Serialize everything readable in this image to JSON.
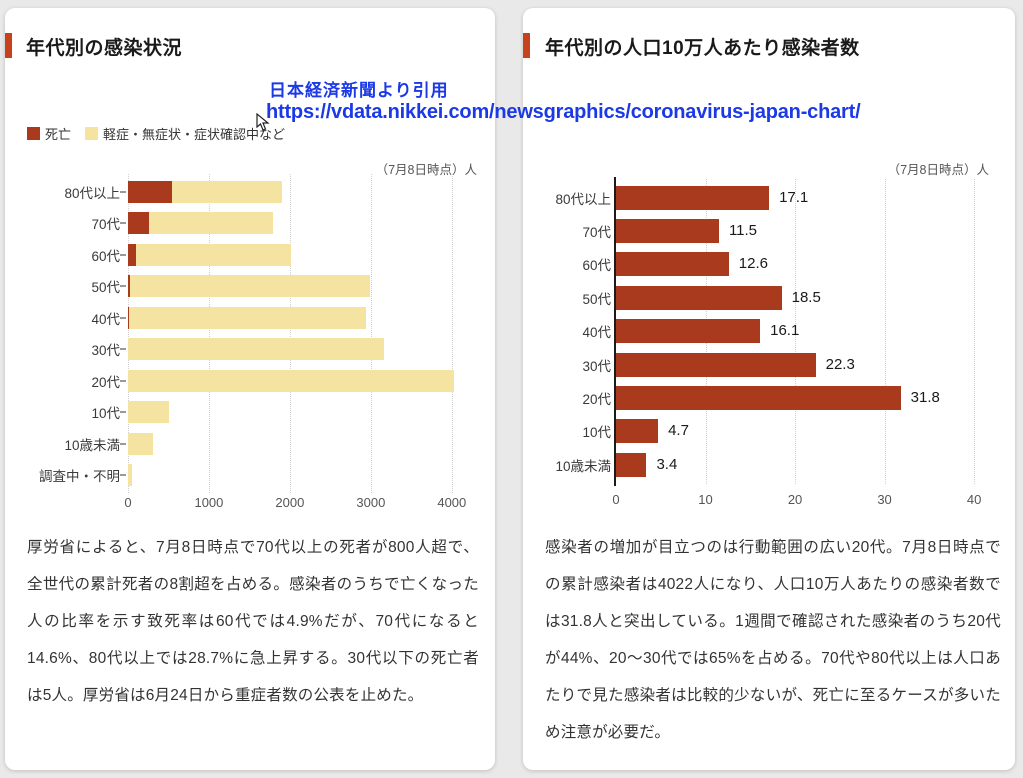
{
  "page": {
    "background": "#e9e9e9",
    "accent_color": "#c7421c"
  },
  "overlay": {
    "credit": "日本経済新聞より引用",
    "url": "https://vdata.nikkei.com/newsgraphics/coronavirus-japan-chart/",
    "color": "#1c39e6",
    "cursor_icon": "mouse-cursor-arrow"
  },
  "left_panel": {
    "title": "年代別の感染状況",
    "accent_color": "#c7421c",
    "legend": [
      {
        "label": "死亡",
        "color": "#a93a1e"
      },
      {
        "label": "軽症・無症状・症状確認中など",
        "color": "#f4e3a1"
      }
    ],
    "unit_note": "（7月8日時点）人",
    "body_text": "厚労省によると、7月8日時点で70代以上の死者が800人超で、全世代の累計死者の8割超を占める。感染者のうちで亡くなった人の比率を示す致死率は60代では4.9%だが、70代になると14.6%、80代以上では28.7%に急上昇する。30代以下の死亡者は5人。厚労省は6月24日から重症者数の公表を止めた。"
  },
  "right_panel": {
    "title": "年代別の人口10万人あたり感染者数",
    "accent_color": "#c7421c",
    "unit_note": "（7月8日時点）人",
    "body_text": "感染者の増加が目立つのは行動範囲の広い20代。7月8日時点での累計感染者は4022人になり、人口10万人あたりの感染者数では31.8人と突出している。1週間で確認された感染者のうち20代が44%、20〜30代では65%を占める。70代や80代以上は人口あたりで見た感染者は比較的少ないが、死亡に至るケースが多いため注意が必要だ。"
  },
  "chart_data": [
    {
      "type": "bar",
      "orientation": "horizontal",
      "stacked": true,
      "title": "年代別の感染状況",
      "as_of": "7月8日時点",
      "unit": "人",
      "categories": [
        "80代以上",
        "70代",
        "60代",
        "50代",
        "40代",
        "30代",
        "20代",
        "10代",
        "10歳未満",
        "調査中・不明"
      ],
      "series": [
        {
          "name": "死亡",
          "color": "#a93a1e",
          "values": [
            545,
            260,
            100,
            25,
            10,
            3,
            2,
            0,
            0,
            0
          ]
        },
        {
          "name": "軽症・無症状・症状確認中など",
          "color": "#f4e3a1",
          "values": [
            1360,
            1530,
            1910,
            2965,
            2930,
            3157,
            4020,
            505,
            310,
            50
          ]
        }
      ],
      "totals": [
        1905,
        1790,
        2010,
        2990,
        2940,
        3160,
        4022,
        505,
        310,
        50
      ],
      "xticks": [
        0,
        1000,
        2000,
        3000,
        4000
      ],
      "xlim": [
        0,
        4200
      ],
      "grid": "dotted-vertical",
      "legend_position": "top-left"
    },
    {
      "type": "bar",
      "orientation": "horizontal",
      "stacked": false,
      "title": "年代別の人口10万人あたり感染者数",
      "as_of": "7月8日時点",
      "unit": "人",
      "categories": [
        "80代以上",
        "70代",
        "60代",
        "50代",
        "40代",
        "30代",
        "20代",
        "10代",
        "10歳未満"
      ],
      "values": [
        17.1,
        11.5,
        12.6,
        18.5,
        16.1,
        22.3,
        31.8,
        4.7,
        3.4
      ],
      "value_labels": [
        "17.1",
        "11.5",
        "12.6",
        "18.5",
        "16.1",
        "22.3",
        "31.8",
        "4.7",
        "3.4"
      ],
      "bar_color": "#a93a1e",
      "xticks": [
        0,
        10,
        20,
        30,
        40
      ],
      "xlim": [
        0,
        42
      ],
      "grid": "dotted-vertical",
      "legend_position": "none"
    }
  ]
}
